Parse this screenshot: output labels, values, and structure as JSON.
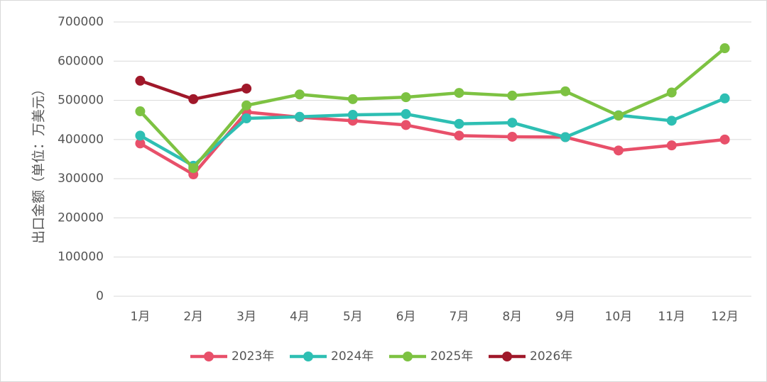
{
  "chart_data": {
    "type": "line",
    "y_label": "出口金额（单位：万美元）",
    "categories": [
      "1月",
      "2月",
      "3月",
      "4月",
      "5月",
      "6月",
      "7月",
      "8月",
      "9月",
      "10月",
      "11月",
      "12月"
    ],
    "series": [
      {
        "name": "2023年",
        "color": "#e8506a",
        "values": [
          390000,
          311000,
          470000,
          457000,
          448000,
          437000,
          410000,
          407000,
          406000,
          372000,
          385000,
          400000
        ]
      },
      {
        "name": "2024年",
        "color": "#2ebfb3",
        "values": [
          410000,
          333000,
          454000,
          458000,
          463000,
          465000,
          440000,
          443000,
          406000,
          462000,
          448000,
          505000
        ]
      },
      {
        "name": "2025年",
        "color": "#7dc242",
        "values": [
          472000,
          327000,
          487000,
          515000,
          503000,
          508000,
          519000,
          512000,
          523000,
          461000,
          520000,
          633000
        ]
      },
      {
        "name": "2026年",
        "color": "#a0182a",
        "values": [
          550000,
          503000,
          530000,
          null,
          null,
          null,
          null,
          null,
          null,
          null,
          null,
          null
        ]
      }
    ],
    "ylim": [
      0,
      700000
    ],
    "yticks": [
      0,
      100000,
      200000,
      300000,
      400000,
      500000,
      600000,
      700000
    ],
    "grid": true,
    "legend": "bottom"
  }
}
